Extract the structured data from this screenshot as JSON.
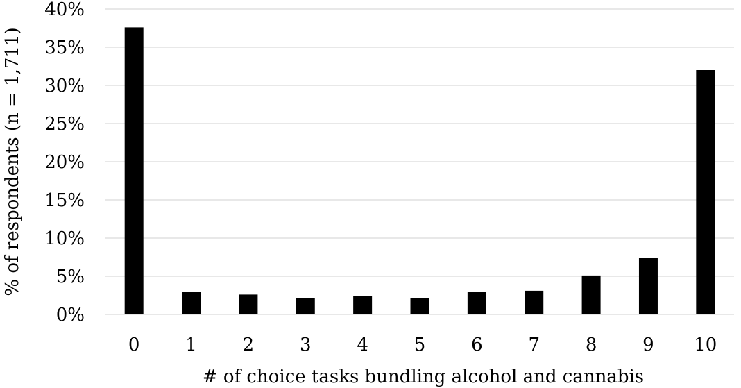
{
  "chart_data": {
    "type": "bar",
    "title": "",
    "xlabel": "# of choice tasks bundling alcohol and cannabis",
    "ylabel": "% of respondents (n = 1,711)",
    "categories": [
      "0",
      "1",
      "2",
      "3",
      "4",
      "5",
      "6",
      "7",
      "8",
      "9",
      "10"
    ],
    "values": [
      37.6,
      3.0,
      2.6,
      2.1,
      2.4,
      2.1,
      3.0,
      3.1,
      5.1,
      7.4,
      32.0
    ],
    "ylim": [
      0,
      40
    ],
    "yticks": [
      0,
      5,
      10,
      15,
      20,
      25,
      30,
      35,
      40
    ],
    "ytick_labels": [
      "0%",
      "5%",
      "10%",
      "15%",
      "20%",
      "25%",
      "30%",
      "35%",
      "40%"
    ],
    "grid": true,
    "legend": "none",
    "colors": {
      "bar": "#000000",
      "gridline": "#d9d9d9"
    }
  }
}
